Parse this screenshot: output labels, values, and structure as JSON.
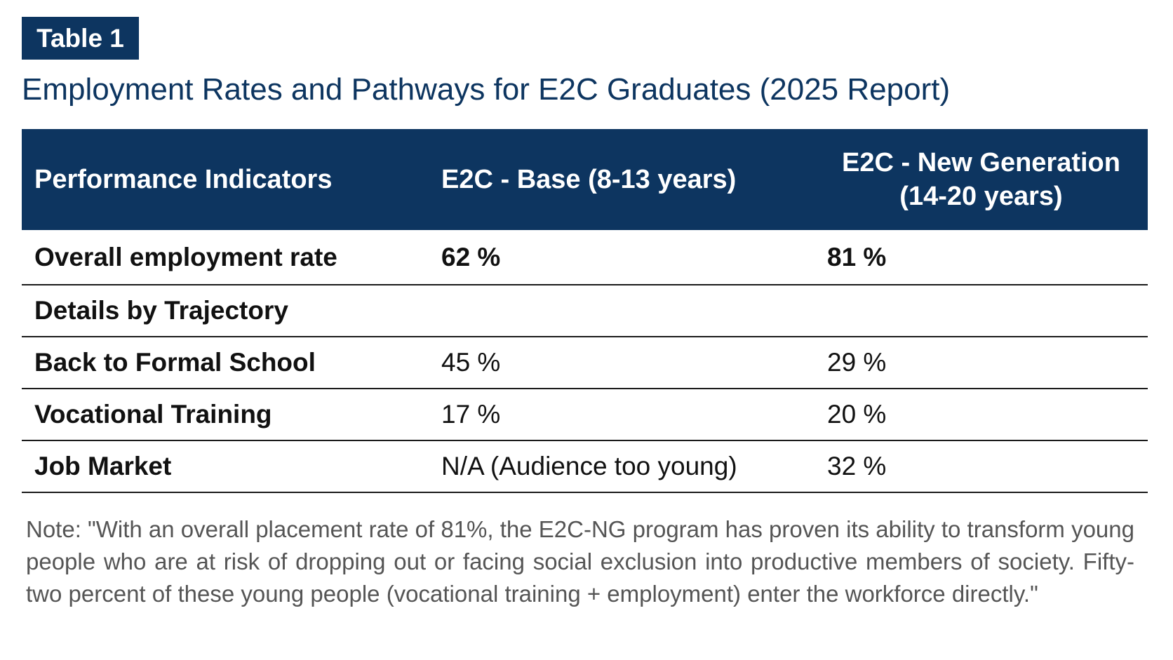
{
  "table_label": "Table 1",
  "title": "Employment Rates and Pathways for E2C Graduates (2025 Report)",
  "columns": [
    "Performance Indicators",
    "E2C - Base (8-13 years)",
    "E2C - New Generation (14-20 years)"
  ],
  "rows": [
    {
      "indicator": "Overall employment rate",
      "base": "62 %",
      "new_generation": "81 %"
    },
    {
      "indicator": "Details by Trajectory",
      "base": "",
      "new_generation": ""
    },
    {
      "indicator": "Back to Formal School",
      "base": "45 %",
      "new_generation": "29 %"
    },
    {
      "indicator": "Vocational Training",
      "base": "17 %",
      "new_generation": "20 %"
    },
    {
      "indicator": "Job Market",
      "base": "N/A (Audience too young)",
      "new_generation": "32 %"
    }
  ],
  "note": "Note: \"With an overall placement rate of 81%, the E2C-NG program has proven its ability to transform young people who are at risk of dropping out or facing social exclusion into productive members of society. Fifty-two percent of these young people (vocational training + employment) enter the workforce directly.\"",
  "colors": {
    "header_background": "#0d3560",
    "title_color": "#0d3560",
    "note_color": "#555555"
  }
}
